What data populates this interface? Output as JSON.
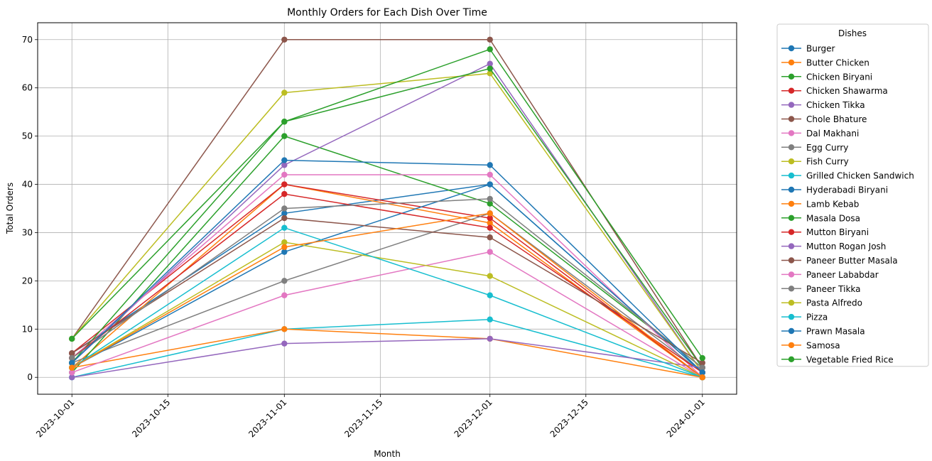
{
  "chart_data": {
    "type": "line",
    "title": "Monthly Orders for Each Dish Over Time",
    "xlabel": "Month",
    "ylabel": "Total Orders",
    "x": [
      "2023-10-01",
      "2023-11-01",
      "2023-12-01",
      "2024-01-01"
    ],
    "xlim": [
      "2023-09-26",
      "2024-01-06"
    ],
    "x_ticks": [
      "2023-10-01",
      "2023-10-15",
      "2023-11-01",
      "2023-11-15",
      "2023-12-01",
      "2023-12-15",
      "2024-01-01"
    ],
    "ylim": [
      -3.5,
      73.5
    ],
    "y_ticks": [
      0,
      10,
      20,
      30,
      40,
      50,
      60,
      70
    ],
    "grid": true,
    "markers": true,
    "legend": {
      "title": "Dishes",
      "placement": "outside-right"
    },
    "series": [
      {
        "name": "Burger",
        "color": "#1f77b4",
        "values": [
          5,
          34,
          40,
          1
        ]
      },
      {
        "name": "Butter Chicken",
        "color": "#ff7f0e",
        "values": [
          2,
          40,
          32,
          0
        ]
      },
      {
        "name": "Chicken Biryani",
        "color": "#2ca02c",
        "values": [
          1,
          50,
          36,
          2
        ]
      },
      {
        "name": "Chicken Shawarma",
        "color": "#d62728",
        "values": [
          5,
          40,
          33,
          0
        ]
      },
      {
        "name": "Chicken Tikka",
        "color": "#9467bd",
        "values": [
          3,
          44,
          65,
          1
        ]
      },
      {
        "name": "Chole Bhature",
        "color": "#8c564b",
        "values": [
          8,
          70,
          70,
          2
        ]
      },
      {
        "name": "Dal Makhani",
        "color": "#e377c2",
        "values": [
          4,
          42,
          42,
          0
        ]
      },
      {
        "name": "Egg Curry",
        "color": "#7f7f7f",
        "values": [
          3,
          20,
          34,
          1
        ]
      },
      {
        "name": "Fish Curry",
        "color": "#bcbd22",
        "values": [
          8,
          59,
          63,
          1
        ]
      },
      {
        "name": "Grilled Chicken Sandwich",
        "color": "#17becf",
        "values": [
          0,
          10,
          12,
          0
        ]
      },
      {
        "name": "Hyderabadi Biryani",
        "color": "#1f77b4",
        "values": [
          2,
          26,
          40,
          1
        ]
      },
      {
        "name": "Lamb Kebab",
        "color": "#ff7f0e",
        "values": [
          2,
          10,
          8,
          0
        ]
      },
      {
        "name": "Masala Dosa",
        "color": "#2ca02c",
        "values": [
          3,
          53,
          64,
          2
        ]
      },
      {
        "name": "Mutton Biryani",
        "color": "#d62728",
        "values": [
          4,
          38,
          31,
          1
        ]
      },
      {
        "name": "Mutton Rogan Josh",
        "color": "#9467bd",
        "values": [
          0,
          7,
          8,
          2
        ]
      },
      {
        "name": "Paneer Butter Masala",
        "color": "#8c564b",
        "values": [
          5,
          33,
          29,
          3
        ]
      },
      {
        "name": "Paneer Lababdar",
        "color": "#e377c2",
        "values": [
          1,
          17,
          26,
          0
        ]
      },
      {
        "name": "Paneer Tikka",
        "color": "#7f7f7f",
        "values": [
          4,
          35,
          37,
          2
        ]
      },
      {
        "name": "Pasta Alfredo",
        "color": "#bcbd22",
        "values": [
          2,
          28,
          21,
          0
        ]
      },
      {
        "name": "Pizza",
        "color": "#17becf",
        "values": [
          2,
          31,
          17,
          0
        ]
      },
      {
        "name": "Prawn Masala",
        "color": "#1f77b4",
        "values": [
          3,
          45,
          44,
          1
        ]
      },
      {
        "name": "Samosa",
        "color": "#ff7f0e",
        "values": [
          2,
          27,
          34,
          0
        ]
      },
      {
        "name": "Vegetable Fried Rice",
        "color": "#2ca02c",
        "values": [
          8,
          53,
          68,
          4
        ]
      }
    ]
  }
}
